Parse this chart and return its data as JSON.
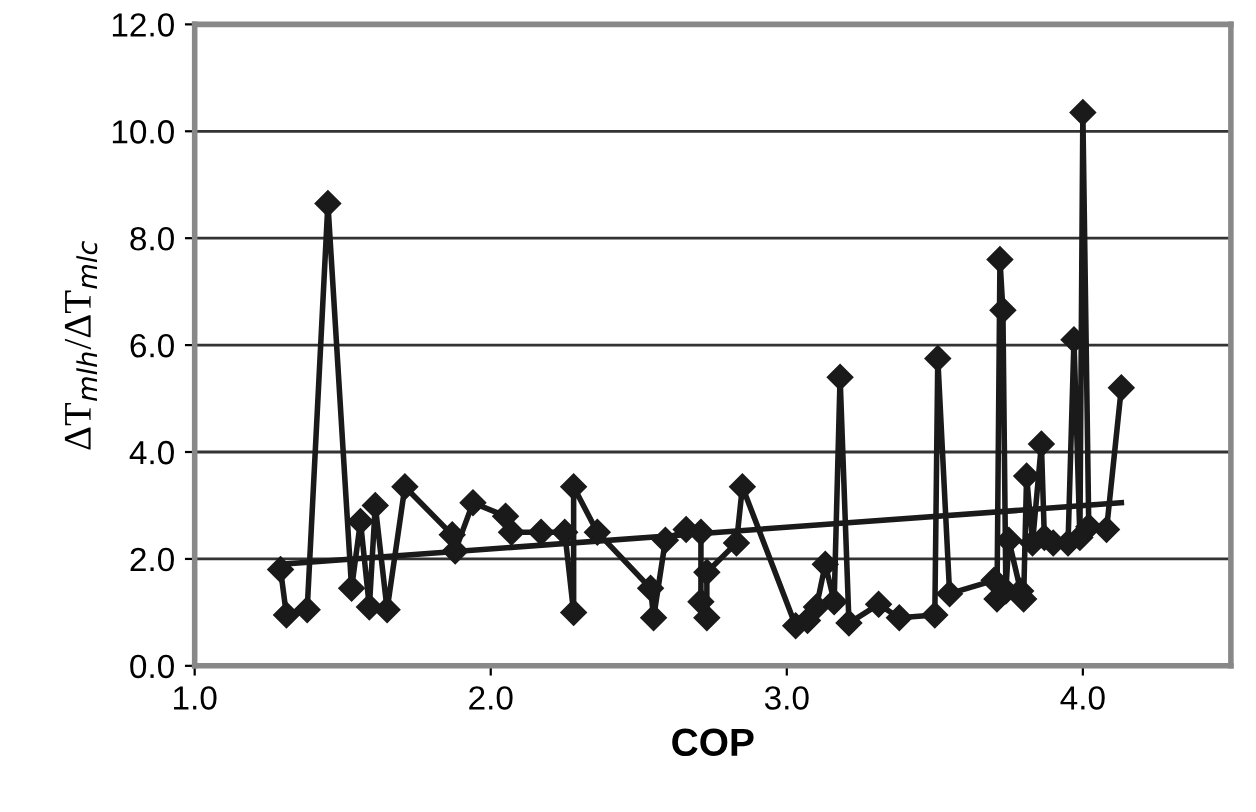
{
  "chart_data": {
    "type": "line",
    "xlabel": "COP",
    "ylabel": "ΔT$_{mlh}$/ΔT$_{mlc}$",
    "xlim": [
      1.0,
      4.5
    ],
    "ylim": [
      0,
      12
    ],
    "xticks": [
      {
        "value": 1,
        "label": "1.0"
      },
      {
        "value": 2,
        "label": "2.0"
      },
      {
        "value": 3,
        "label": "3.0"
      },
      {
        "value": 4,
        "label": "4.0"
      }
    ],
    "yticks": [
      {
        "value": 0,
        "label": "0.0"
      },
      {
        "value": 2,
        "label": "2.0"
      },
      {
        "value": 4,
        "label": "4.0"
      },
      {
        "value": 6,
        "label": "6.0"
      },
      {
        "value": 8,
        "label": "8.0"
      },
      {
        "value": 10,
        "label": "10.0"
      },
      {
        "value": 12,
        "label": "12.0"
      }
    ],
    "grid": "y",
    "legend": false,
    "series": [
      {
        "color": "#1a1a1a",
        "marker": "diamond",
        "line_style": "solid",
        "x": [
          1.29,
          1.31,
          1.38,
          1.45,
          1.53,
          1.56,
          1.59,
          1.61,
          1.65,
          1.71,
          1.87,
          1.88,
          1.94,
          2.05,
          2.07,
          2.17,
          2.25,
          2.28,
          2.28,
          2.36,
          2.54,
          2.55,
          2.59,
          2.66,
          2.71,
          2.71,
          2.73,
          2.73,
          2.83,
          2.85,
          3.03,
          3.07,
          3.1,
          3.13,
          3.16,
          3.18,
          3.21,
          3.31,
          3.38,
          3.5,
          3.51,
          3.55,
          3.7,
          3.71,
          3.72,
          3.73,
          3.74,
          3.75,
          3.79,
          3.8,
          3.81,
          3.83,
          3.86,
          3.87,
          3.9,
          3.95,
          3.97,
          3.99,
          4.0,
          4.02,
          4.08,
          4.13
        ],
        "values": [
          1.8,
          0.95,
          1.05,
          8.65,
          1.45,
          2.7,
          1.1,
          3.0,
          1.05,
          3.35,
          2.45,
          2.15,
          3.05,
          2.8,
          2.5,
          2.5,
          2.5,
          1.0,
          3.35,
          2.5,
          1.45,
          0.9,
          2.35,
          2.55,
          2.5,
          1.2,
          0.9,
          1.75,
          2.3,
          3.35,
          0.75,
          0.85,
          1.1,
          1.9,
          1.2,
          5.4,
          0.8,
          1.15,
          0.9,
          0.95,
          5.75,
          1.35,
          1.6,
          1.25,
          7.6,
          6.65,
          1.4,
          2.35,
          1.4,
          1.25,
          3.55,
          2.3,
          4.15,
          2.4,
          2.3,
          2.3,
          6.1,
          2.4,
          10.35,
          2.6,
          2.55,
          5.2
        ]
      },
      {
        "color": "#1a1a1a",
        "marker": "none",
        "line_style": "solid",
        "x": [
          1.29,
          4.13
        ],
        "values": [
          1.9,
          3.05
        ]
      }
    ]
  }
}
